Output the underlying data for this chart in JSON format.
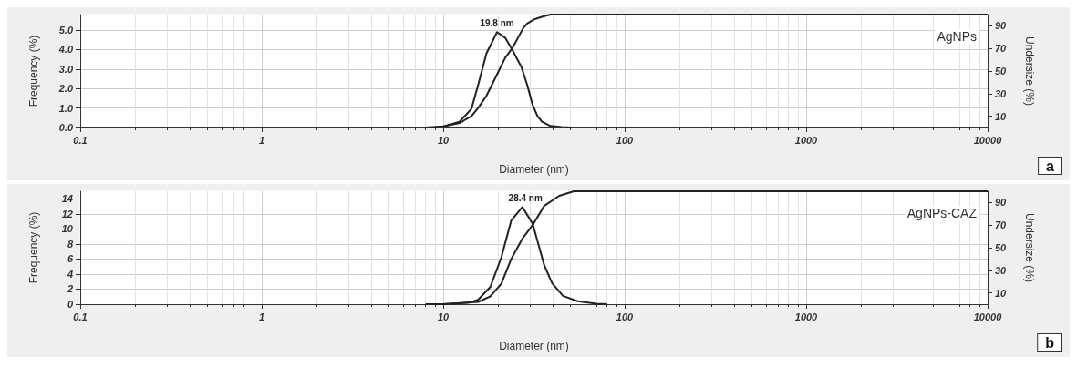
{
  "chart_data": [
    {
      "type": "line",
      "xlabel": "Diameter (nm)",
      "ylabel": "Frequency (%)",
      "y2label": "Undersize (%)",
      "log": "x",
      "grid": true,
      "marker": "none",
      "line_style": "solid",
      "xlim": [
        0.1,
        10000
      ],
      "xticks": [
        0.1,
        1,
        10,
        100,
        1000,
        10000
      ],
      "ylim": [
        0,
        5.8
      ],
      "yticks": [
        {
          "value": 0,
          "label": "0.0"
        },
        {
          "value": 1,
          "label": "1.0"
        },
        {
          "value": 2,
          "label": "2.0"
        },
        {
          "value": 3,
          "label": "3.0"
        },
        {
          "value": 4,
          "label": "4.0"
        },
        {
          "value": 5,
          "label": "5.0"
        }
      ],
      "y2lim": [
        0,
        100
      ],
      "y2ticks": [
        10,
        30,
        50,
        70,
        90
      ],
      "series": [
        {
          "color": "#222222",
          "x": [
            8,
            8.9,
            10,
            12.3,
            14.3,
            15.7,
            17.3,
            19.8,
            22,
            24,
            27,
            29,
            31,
            33,
            35,
            39,
            45,
            51
          ],
          "values": [
            0,
            0,
            0.05,
            0.3,
            0.95,
            2.3,
            3.8,
            4.9,
            4.6,
            4.0,
            3.1,
            2.2,
            1.2,
            0.6,
            0.3,
            0.08,
            0.02,
            0
          ]
        },
        {
          "color": "#222222",
          "axis": "y2",
          "x": [
            8,
            10,
            12.3,
            14.3,
            15.7,
            17.3,
            19.8,
            22,
            24,
            27.6,
            29,
            32,
            35,
            39,
            10000
          ],
          "values": [
            0,
            1,
            4,
            10,
            18,
            28,
            47,
            62,
            70,
            88,
            92,
            96,
            98,
            100,
            100
          ]
        }
      ],
      "annotations": [
        "AgNPs",
        {
          "text": "19.8 nm",
          "x": 19.8,
          "y": 4.9
        },
        "a"
      ]
    },
    {
      "type": "line",
      "xlabel": "Diameter (nm)",
      "ylabel": "Frequency (%)",
      "y2label": "Undersize (%)",
      "log": "x",
      "grid": true,
      "marker": "none",
      "line_style": "solid",
      "xlim": [
        0.1,
        10000
      ],
      "xticks": [
        0.1,
        1,
        10,
        100,
        1000,
        10000
      ],
      "ylim": [
        0,
        15
      ],
      "yticks": [
        0,
        2,
        4,
        6,
        8,
        10,
        12,
        14
      ],
      "y2lim": [
        0,
        100
      ],
      "y2ticks": [
        10,
        30,
        50,
        70,
        90
      ],
      "series": [
        {
          "color": "#222222",
          "x": [
            8,
            10,
            13.9,
            15.6,
            18.2,
            20.9,
            23.7,
            27.3,
            31.1,
            36,
            39.8,
            45.7,
            55,
            70,
            80
          ],
          "values": [
            0,
            0,
            0.2,
            0.6,
            2.3,
            6.2,
            11.1,
            12.9,
            10.7,
            5.2,
            2.8,
            1.1,
            0.4,
            0.05,
            0
          ]
        },
        {
          "color": "#222222",
          "axis": "y2",
          "x": [
            8,
            10,
            15.6,
            18.2,
            20.9,
            23.7,
            27.3,
            31.1,
            36,
            43.6,
            52.5,
            10000
          ],
          "values": [
            0,
            0,
            2,
            7,
            18,
            40,
            58,
            70,
            87,
            96,
            100,
            100
          ]
        }
      ],
      "annotations": [
        "AgNPs-CAZ",
        {
          "text": "28.4 nm",
          "x": 28.4,
          "y": 12.9
        },
        "b"
      ]
    }
  ]
}
